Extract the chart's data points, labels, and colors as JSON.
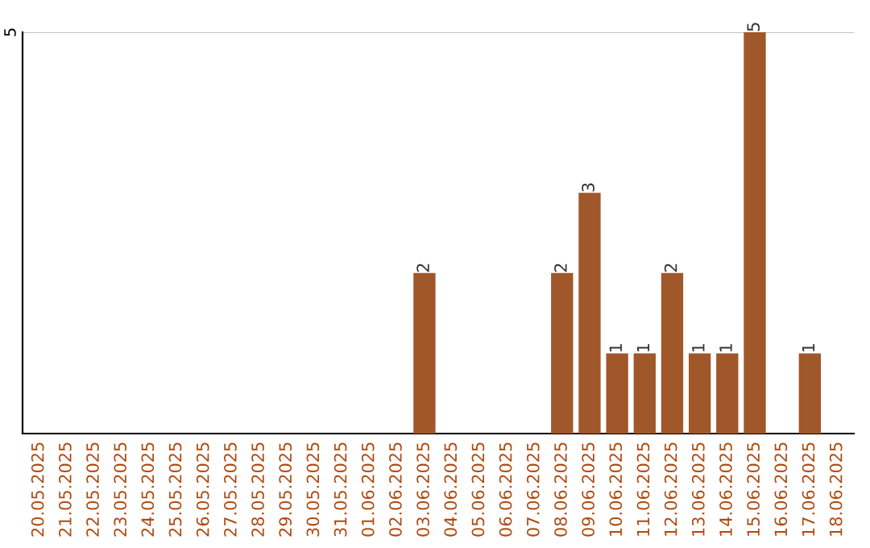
{
  "chart_data": {
    "type": "bar",
    "categories": [
      "20.05.2025",
      "21.05.2025",
      "22.05.2025",
      "23.05.2025",
      "24.05.2025",
      "25.05.2025",
      "26.05.2025",
      "27.05.2025",
      "28.05.2025",
      "29.05.2025",
      "30.05.2025",
      "31.05.2025",
      "01.06.2025",
      "02.06.2025",
      "03.06.2025",
      "04.06.2025",
      "05.06.2025",
      "06.06.2025",
      "07.06.2025",
      "08.06.2025",
      "09.06.2025",
      "10.06.2025",
      "11.06.2025",
      "12.06.2025",
      "13.06.2025",
      "14.06.2025",
      "15.06.2025",
      "16.06.2025",
      "17.06.2025",
      "18.06.2025"
    ],
    "values": [
      null,
      null,
      null,
      null,
      null,
      null,
      null,
      null,
      null,
      null,
      null,
      null,
      null,
      null,
      2,
      null,
      null,
      null,
      null,
      2,
      3,
      1,
      1,
      2,
      1,
      1,
      5,
      null,
      1,
      null
    ],
    "ylim": [
      0,
      5
    ],
    "yticks": [
      5
    ],
    "value_labels": [
      null,
      null,
      null,
      null,
      null,
      null,
      null,
      null,
      null,
      null,
      null,
      null,
      null,
      null,
      "2",
      null,
      null,
      null,
      null,
      "2",
      "3",
      "1",
      "1",
      "2",
      "1",
      "1",
      "5",
      null,
      "1",
      null
    ],
    "color": "#a0572a",
    "ref_lines": [
      {
        "axis": "y",
        "value": 5,
        "color": "#c4c4c4"
      }
    ]
  }
}
